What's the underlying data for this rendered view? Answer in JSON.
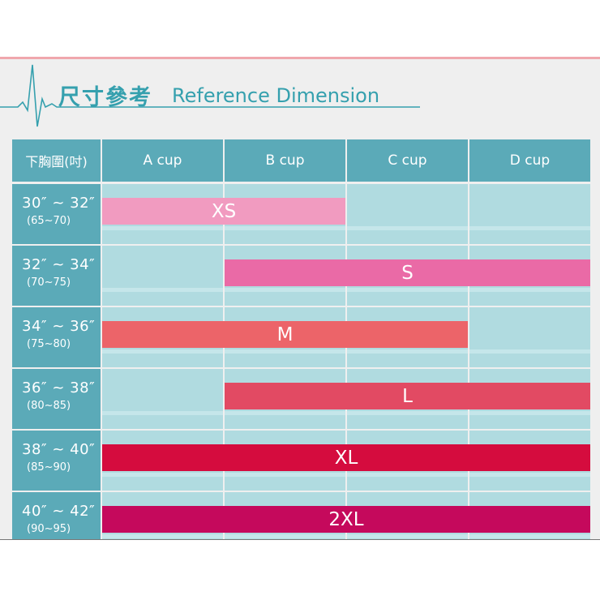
{
  "header": {
    "title_zh": "尺寸參考",
    "title_en": "Reference Dimension"
  },
  "table": {
    "corner_label": "下胸圍(吋)",
    "columns": [
      "A cup",
      "B cup",
      "C cup",
      "D cup"
    ],
    "rows": [
      {
        "inch": "30″ ~ 32″",
        "cm": "(65~70)",
        "size": "XS",
        "cups": [
          "A cup",
          "B cup"
        ],
        "color": "#f19bc0"
      },
      {
        "inch": "32″ ~ 34″",
        "cm": "(70~75)",
        "size": "S",
        "cups": [
          "B cup",
          "C cup",
          "D cup"
        ],
        "color": "#ea6aa6"
      },
      {
        "inch": "34″ ~ 36″",
        "cm": "(75~80)",
        "size": "M",
        "cups": [
          "A cup",
          "B cup",
          "C cup"
        ],
        "color": "#ec6469"
      },
      {
        "inch": "36″ ~ 38″",
        "cm": "(80~85)",
        "size": "L",
        "cups": [
          "B cup",
          "C cup",
          "D cup"
        ],
        "color": "#e24a63"
      },
      {
        "inch": "38″ ~ 40″",
        "cm": "(85~90)",
        "size": "XL",
        "cups": [
          "A cup",
          "B cup",
          "C cup",
          "D cup"
        ],
        "color": "#d50c3e"
      },
      {
        "inch": "40″ ~ 42″",
        "cm": "(90~95)",
        "size": "2XL",
        "cups": [
          "A cup",
          "B cup",
          "C cup",
          "D cup"
        ],
        "color": "#c5095c"
      }
    ]
  },
  "colors": {
    "accent": "#35a0ae",
    "header_bg": "#5baab8",
    "cell_bg": "#b0dbe0"
  }
}
